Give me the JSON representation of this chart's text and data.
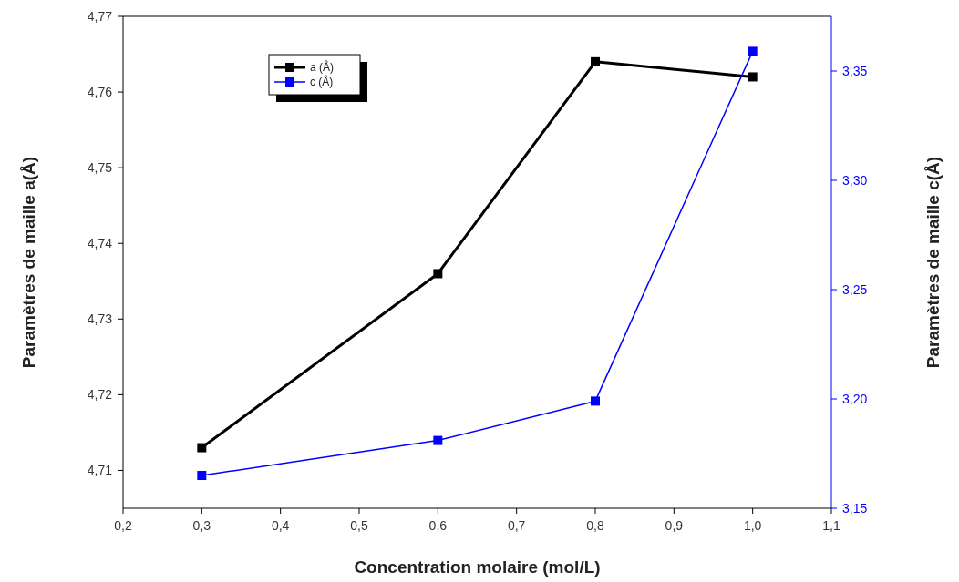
{
  "chart_data": {
    "type": "line",
    "xlabel": "Concentration molaire (mol/L)",
    "ylabel": "Paramètres de maille a(Å)",
    "y2label": "Paramètres de maille c(Å)",
    "x": [
      0.3,
      0.6,
      0.8,
      1.0
    ],
    "series": [
      {
        "name": "a (Å)",
        "color": "#000000",
        "values": [
          4.713,
          4.736,
          4.764,
          4.762
        ]
      },
      {
        "name": "c (Å)",
        "color": "#0000ff",
        "values": [
          3.165,
          3.181,
          3.199,
          3.359
        ],
        "axis": "y2"
      }
    ],
    "xlim": [
      0.2,
      1.1
    ],
    "xticks": [
      {
        "value": 0.2,
        "label": "0,2"
      },
      {
        "value": 0.3,
        "label": "0,3"
      },
      {
        "value": 0.4,
        "label": "0,4"
      },
      {
        "value": 0.5,
        "label": "0,5"
      },
      {
        "value": 0.6,
        "label": "0,6"
      },
      {
        "value": 0.7,
        "label": "0,7"
      },
      {
        "value": 0.8,
        "label": "0,8"
      },
      {
        "value": 0.9,
        "label": "0,9"
      },
      {
        "value": 1.0,
        "label": "1,0"
      },
      {
        "value": 1.1,
        "label": "1,1"
      }
    ],
    "ylim": [
      4.705,
      4.77
    ],
    "yticks": [
      {
        "value": 4.71,
        "label": "4,71"
      },
      {
        "value": 4.72,
        "label": "4,72"
      },
      {
        "value": 4.73,
        "label": "4,73"
      },
      {
        "value": 4.74,
        "label": "4,74"
      },
      {
        "value": 4.75,
        "label": "4,75"
      },
      {
        "value": 4.76,
        "label": "4,76"
      },
      {
        "value": 4.77,
        "label": "4,77"
      }
    ],
    "y2lim": [
      3.15,
      3.375
    ],
    "y2ticks": [
      {
        "value": 3.15,
        "label": "3,15"
      },
      {
        "value": 3.2,
        "label": "3,20"
      },
      {
        "value": 3.25,
        "label": "3,25"
      },
      {
        "value": 3.3,
        "label": "3,30"
      },
      {
        "value": 3.35,
        "label": "3,35"
      }
    ],
    "legend": "top left",
    "marker": "square",
    "grid": false
  }
}
